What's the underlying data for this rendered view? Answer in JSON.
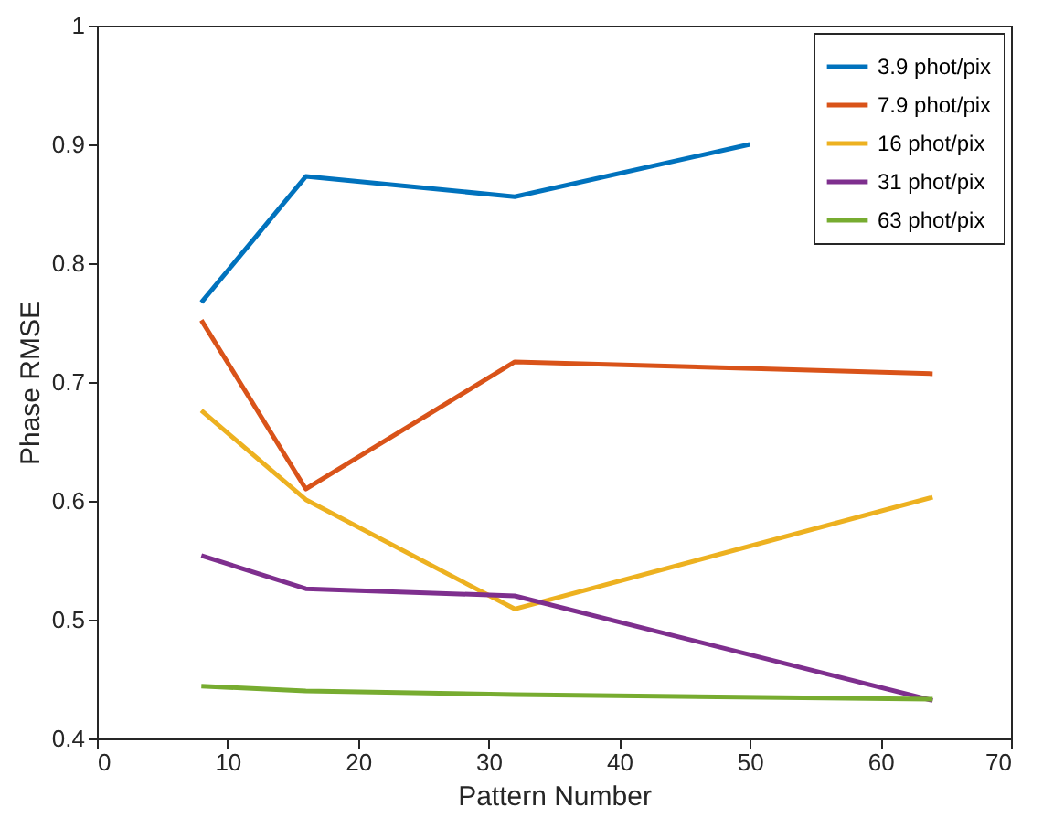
{
  "chart_data": {
    "type": "line",
    "xlabel": "Pattern Number",
    "ylabel": "Phase RMSE",
    "x": [
      8,
      16,
      32,
      64
    ],
    "series": [
      {
        "name": "3.9 phot/pix",
        "color": "#0072bd",
        "x": [
          8,
          16,
          32,
          50
        ],
        "values": [
          0.767,
          0.873,
          0.856,
          0.9
        ]
      },
      {
        "name": "7.9 phot/pix",
        "color": "#d95319",
        "values": [
          0.752,
          0.61,
          0.717,
          0.707
        ]
      },
      {
        "name": "16 phot/pix",
        "color": "#edb120",
        "values": [
          0.676,
          0.601,
          0.509,
          0.603
        ]
      },
      {
        "name": "31 phot/pix",
        "color": "#7e2f8e",
        "values": [
          0.554,
          0.526,
          0.52,
          0.432
        ]
      },
      {
        "name": "63 phot/pix",
        "color": "#77ac30",
        "values": [
          0.444,
          0.44,
          0.437,
          0.433
        ]
      }
    ],
    "xlim": [
      0,
      70
    ],
    "xticks": [
      0,
      10,
      20,
      30,
      40,
      50,
      60,
      70
    ],
    "ylim": [
      0.4,
      1
    ],
    "yticks": [
      0.4,
      0.5,
      0.6,
      0.7,
      0.8,
      0.9,
      1
    ],
    "legend": "top right",
    "grid": false
  }
}
